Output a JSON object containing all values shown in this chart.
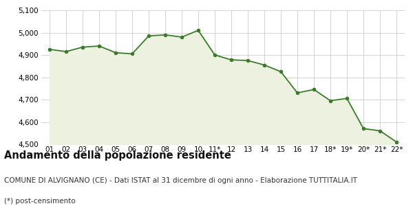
{
  "x_labels": [
    "01",
    "02",
    "03",
    "04",
    "05",
    "06",
    "07",
    "08",
    "09",
    "10",
    "11*",
    "12",
    "13",
    "14",
    "15",
    "16",
    "17",
    "18*",
    "19*",
    "20*",
    "21*",
    "22*"
  ],
  "y_values": [
    4925,
    4915,
    4935,
    4940,
    4910,
    4905,
    4985,
    4990,
    4980,
    5010,
    4900,
    4878,
    4875,
    4855,
    4825,
    4730,
    4745,
    4695,
    4705,
    4570,
    4560,
    4510
  ],
  "line_color": "#3a7a2a",
  "fill_color": "#edf1e0",
  "marker_color": "#3a7a2a",
  "bg_color": "#ffffff",
  "grid_color": "#cccccc",
  "ylim_min": 4500,
  "ylim_max": 5100,
  "yticks": [
    4500,
    4600,
    4700,
    4800,
    4900,
    5000,
    5100
  ],
  "title": "Andamento della popolazione residente",
  "subtitle": "COMUNE DI ALVIGNANO (CE) - Dati ISTAT al 31 dicembre di ogni anno - Elaborazione TUTTITALIA.IT",
  "footnote": "(*) post-censimento",
  "title_fontsize": 10.5,
  "subtitle_fontsize": 7.5,
  "footnote_fontsize": 7.5,
  "tick_fontsize": 7.5
}
